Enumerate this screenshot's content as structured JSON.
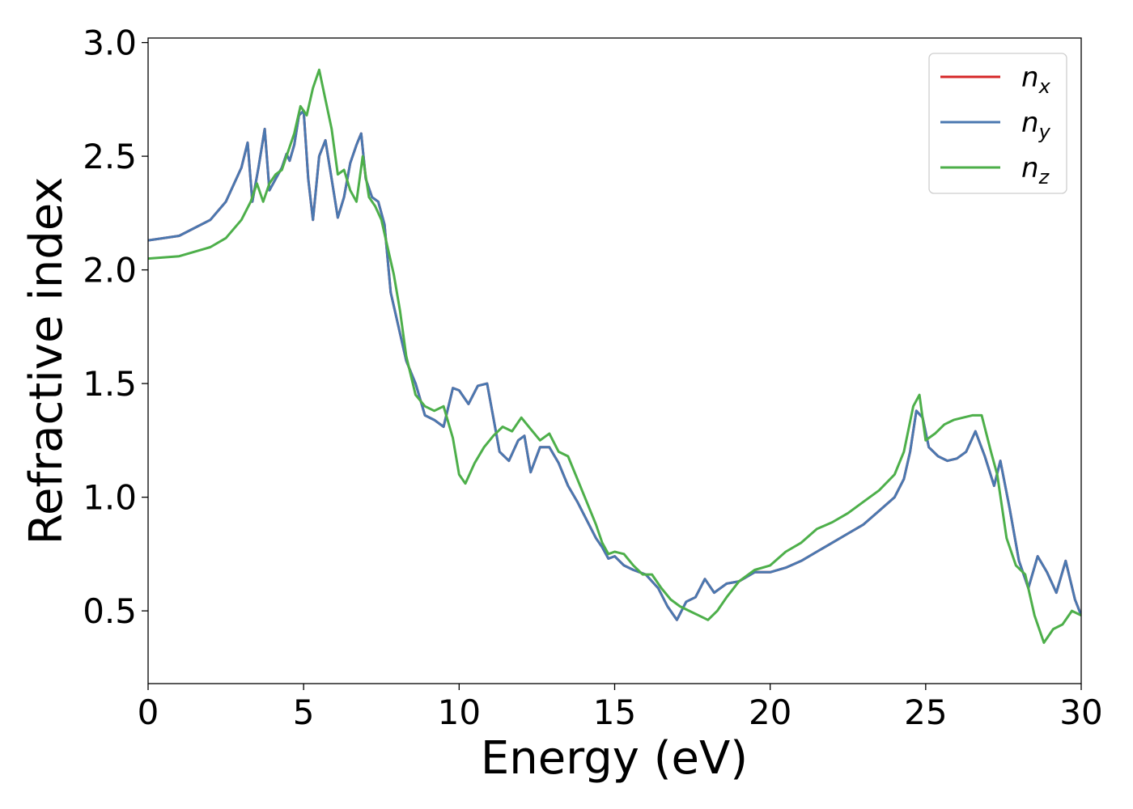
{
  "chart_data": {
    "type": "line",
    "title": "",
    "xlabel": "Energy (eV)",
    "ylabel": "Refractive index",
    "xlim": [
      0,
      30
    ],
    "ylim": [
      0.18,
      3.02
    ],
    "xticks": [
      0,
      5,
      10,
      15,
      20,
      25,
      30
    ],
    "xtick_labels": [
      "0",
      "5",
      "10",
      "15",
      "20",
      "25",
      "30"
    ],
    "yticks": [
      0.5,
      1.0,
      1.5,
      2.0,
      2.5,
      3.0
    ],
    "ytick_labels": [
      "0.5",
      "1.0",
      "1.5",
      "2.0",
      "2.5",
      "3.0"
    ],
    "grid": false,
    "legend_position": "top-right",
    "series": [
      {
        "name": "n_x",
        "label_base": "n",
        "label_sub": "x",
        "color": "#d62728",
        "x": [
          0,
          1,
          2,
          2.5,
          3.0,
          3.2,
          3.35,
          3.55,
          3.75,
          3.9,
          4.1,
          4.3,
          4.45,
          4.55,
          4.7,
          4.85,
          5.0,
          5.15,
          5.3,
          5.5,
          5.7,
          5.9,
          6.1,
          6.3,
          6.5,
          6.7,
          6.85,
          7.0,
          7.2,
          7.4,
          7.6,
          7.8,
          8.0,
          8.3,
          8.6,
          8.9,
          9.2,
          9.5,
          9.8,
          10.0,
          10.3,
          10.6,
          10.9,
          11.1,
          11.3,
          11.6,
          11.9,
          12.1,
          12.3,
          12.6,
          12.9,
          13.2,
          13.5,
          13.8,
          14.1,
          14.4,
          14.6,
          14.8,
          15.0,
          15.3,
          15.6,
          16.0,
          16.4,
          16.7,
          17.0,
          17.3,
          17.6,
          17.9,
          18.2,
          18.6,
          19.0,
          19.5,
          20.0,
          20.5,
          21.0,
          21.5,
          22.0,
          22.5,
          23.0,
          23.5,
          24.0,
          24.3,
          24.5,
          24.7,
          24.9,
          25.1,
          25.4,
          25.7,
          26.0,
          26.3,
          26.6,
          26.9,
          27.2,
          27.4,
          27.7,
          28.0,
          28.3,
          28.6,
          28.9,
          29.2,
          29.5,
          29.8,
          30.0
        ],
        "values": [
          2.13,
          2.15,
          2.22,
          2.3,
          2.45,
          2.56,
          2.3,
          2.45,
          2.62,
          2.35,
          2.4,
          2.45,
          2.51,
          2.48,
          2.55,
          2.68,
          2.7,
          2.4,
          2.22,
          2.5,
          2.57,
          2.4,
          2.23,
          2.32,
          2.47,
          2.55,
          2.6,
          2.4,
          2.32,
          2.3,
          2.2,
          1.9,
          1.78,
          1.6,
          1.5,
          1.36,
          1.34,
          1.31,
          1.48,
          1.47,
          1.41,
          1.49,
          1.5,
          1.35,
          1.2,
          1.16,
          1.25,
          1.27,
          1.11,
          1.22,
          1.22,
          1.15,
          1.05,
          0.98,
          0.9,
          0.82,
          0.78,
          0.73,
          0.74,
          0.7,
          0.68,
          0.66,
          0.6,
          0.52,
          0.46,
          0.54,
          0.56,
          0.64,
          0.58,
          0.62,
          0.63,
          0.67,
          0.67,
          0.69,
          0.72,
          0.76,
          0.8,
          0.84,
          0.88,
          0.94,
          1.0,
          1.08,
          1.2,
          1.38,
          1.35,
          1.22,
          1.18,
          1.16,
          1.17,
          1.2,
          1.29,
          1.18,
          1.05,
          1.16,
          0.95,
          0.72,
          0.6,
          0.74,
          0.67,
          0.58,
          0.72,
          0.55,
          0.48
        ]
      },
      {
        "name": "n_y",
        "label_base": "n",
        "label_sub": "y",
        "color": "#4a78b0",
        "x": [
          0,
          1,
          2,
          2.5,
          3.0,
          3.2,
          3.35,
          3.55,
          3.75,
          3.9,
          4.1,
          4.3,
          4.45,
          4.55,
          4.7,
          4.85,
          5.0,
          5.15,
          5.3,
          5.5,
          5.7,
          5.9,
          6.1,
          6.3,
          6.5,
          6.7,
          6.85,
          7.0,
          7.2,
          7.4,
          7.6,
          7.8,
          8.0,
          8.3,
          8.6,
          8.9,
          9.2,
          9.5,
          9.8,
          10.0,
          10.3,
          10.6,
          10.9,
          11.1,
          11.3,
          11.6,
          11.9,
          12.1,
          12.3,
          12.6,
          12.9,
          13.2,
          13.5,
          13.8,
          14.1,
          14.4,
          14.6,
          14.8,
          15.0,
          15.3,
          15.6,
          16.0,
          16.4,
          16.7,
          17.0,
          17.3,
          17.6,
          17.9,
          18.2,
          18.6,
          19.0,
          19.5,
          20.0,
          20.5,
          21.0,
          21.5,
          22.0,
          22.5,
          23.0,
          23.5,
          24.0,
          24.3,
          24.5,
          24.7,
          24.9,
          25.1,
          25.4,
          25.7,
          26.0,
          26.3,
          26.6,
          26.9,
          27.2,
          27.4,
          27.7,
          28.0,
          28.3,
          28.6,
          28.9,
          29.2,
          29.5,
          29.8,
          30.0
        ],
        "values": [
          2.13,
          2.15,
          2.22,
          2.3,
          2.45,
          2.56,
          2.3,
          2.45,
          2.62,
          2.35,
          2.4,
          2.45,
          2.51,
          2.48,
          2.55,
          2.68,
          2.7,
          2.4,
          2.22,
          2.5,
          2.57,
          2.4,
          2.23,
          2.32,
          2.47,
          2.55,
          2.6,
          2.4,
          2.32,
          2.3,
          2.2,
          1.9,
          1.78,
          1.6,
          1.5,
          1.36,
          1.34,
          1.31,
          1.48,
          1.47,
          1.41,
          1.49,
          1.5,
          1.35,
          1.2,
          1.16,
          1.25,
          1.27,
          1.11,
          1.22,
          1.22,
          1.15,
          1.05,
          0.98,
          0.9,
          0.82,
          0.78,
          0.73,
          0.74,
          0.7,
          0.68,
          0.66,
          0.6,
          0.52,
          0.46,
          0.54,
          0.56,
          0.64,
          0.58,
          0.62,
          0.63,
          0.67,
          0.67,
          0.69,
          0.72,
          0.76,
          0.8,
          0.84,
          0.88,
          0.94,
          1.0,
          1.08,
          1.2,
          1.38,
          1.35,
          1.22,
          1.18,
          1.16,
          1.17,
          1.2,
          1.29,
          1.18,
          1.05,
          1.16,
          0.95,
          0.72,
          0.6,
          0.74,
          0.67,
          0.58,
          0.72,
          0.55,
          0.48
        ]
      },
      {
        "name": "n_z",
        "label_base": "n",
        "label_sub": "z",
        "color": "#4daf4a",
        "x": [
          0,
          1,
          2,
          2.5,
          3.0,
          3.3,
          3.5,
          3.7,
          3.9,
          4.1,
          4.3,
          4.5,
          4.7,
          4.9,
          5.1,
          5.3,
          5.5,
          5.7,
          5.9,
          6.1,
          6.3,
          6.5,
          6.7,
          6.9,
          7.1,
          7.3,
          7.5,
          7.7,
          7.9,
          8.1,
          8.3,
          8.6,
          8.9,
          9.2,
          9.5,
          9.8,
          10.0,
          10.2,
          10.5,
          10.8,
          11.1,
          11.4,
          11.7,
          12.0,
          12.3,
          12.6,
          12.9,
          13.2,
          13.5,
          13.8,
          14.1,
          14.4,
          14.6,
          14.8,
          15.0,
          15.3,
          15.6,
          15.9,
          16.2,
          16.5,
          16.8,
          17.1,
          17.4,
          17.7,
          18.0,
          18.3,
          18.6,
          19.0,
          19.5,
          20.0,
          20.5,
          21.0,
          21.5,
          22.0,
          22.5,
          23.0,
          23.5,
          24.0,
          24.3,
          24.6,
          24.8,
          25.0,
          25.3,
          25.6,
          25.9,
          26.2,
          26.5,
          26.8,
          27.1,
          27.3,
          27.6,
          27.9,
          28.2,
          28.5,
          28.8,
          29.1,
          29.4,
          29.7,
          30.0
        ],
        "values": [
          2.05,
          2.06,
          2.1,
          2.14,
          2.22,
          2.3,
          2.38,
          2.3,
          2.38,
          2.42,
          2.44,
          2.52,
          2.6,
          2.72,
          2.68,
          2.8,
          2.88,
          2.75,
          2.62,
          2.42,
          2.44,
          2.35,
          2.3,
          2.5,
          2.32,
          2.28,
          2.22,
          2.1,
          1.98,
          1.82,
          1.62,
          1.45,
          1.4,
          1.38,
          1.4,
          1.26,
          1.1,
          1.06,
          1.15,
          1.22,
          1.27,
          1.31,
          1.29,
          1.35,
          1.3,
          1.25,
          1.28,
          1.2,
          1.18,
          1.08,
          0.98,
          0.88,
          0.8,
          0.75,
          0.76,
          0.75,
          0.7,
          0.66,
          0.66,
          0.6,
          0.55,
          0.52,
          0.5,
          0.48,
          0.46,
          0.5,
          0.56,
          0.63,
          0.68,
          0.7,
          0.76,
          0.8,
          0.86,
          0.89,
          0.93,
          0.98,
          1.03,
          1.1,
          1.2,
          1.4,
          1.45,
          1.25,
          1.28,
          1.32,
          1.34,
          1.35,
          1.36,
          1.36,
          1.2,
          1.1,
          0.82,
          0.7,
          0.66,
          0.48,
          0.36,
          0.42,
          0.44,
          0.5,
          0.48
        ]
      }
    ]
  }
}
